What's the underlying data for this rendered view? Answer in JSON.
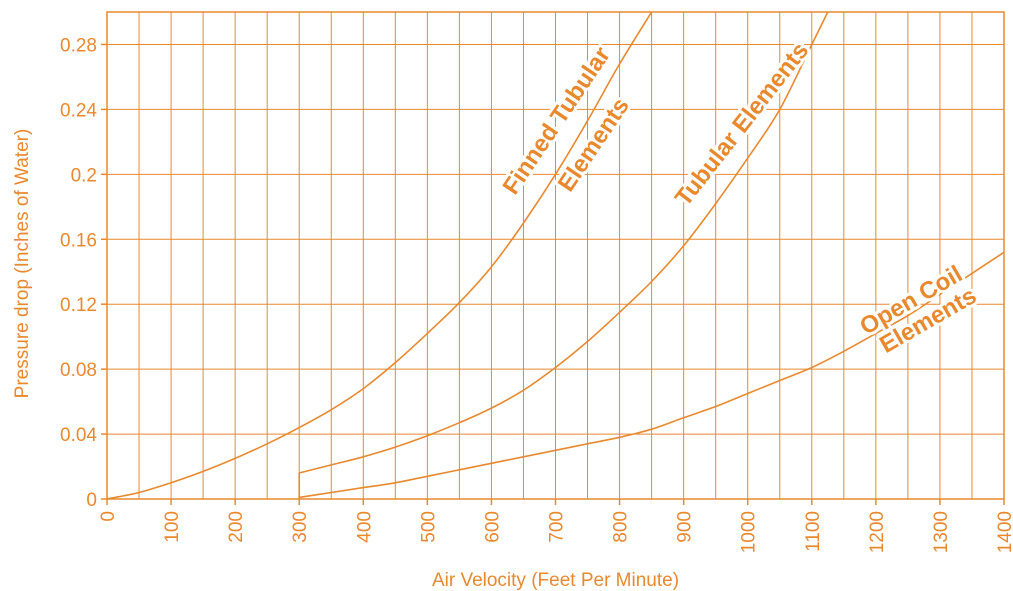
{
  "chart_data": {
    "type": "line",
    "xlabel": "Air Velocity (Feet Per Minute)",
    "ylabel": "Pressure drop (Inches of Water)",
    "xlim": [
      0,
      1400
    ],
    "ylim": [
      0,
      0.3
    ],
    "grid": true,
    "x_ticks": [
      "0",
      "100",
      "200",
      "300",
      "400",
      "500",
      "600",
      "700",
      "800",
      "900",
      "1000",
      "1100",
      "1200",
      "1300",
      "1400"
    ],
    "y_ticks": [
      "0",
      "0.04",
      "0.08",
      "0.12",
      "0.16",
      "0.2",
      "0.24",
      "0.28"
    ],
    "series": [
      {
        "label_lines": [
          "Finned Tubular",
          "Elements"
        ],
        "points": [
          [
            0,
            0
          ],
          [
            50,
            0.004
          ],
          [
            100,
            0.01
          ],
          [
            150,
            0.017
          ],
          [
            200,
            0.025
          ],
          [
            250,
            0.034
          ],
          [
            300,
            0.044
          ],
          [
            350,
            0.055
          ],
          [
            400,
            0.068
          ],
          [
            450,
            0.084
          ],
          [
            500,
            0.102
          ],
          [
            550,
            0.121
          ],
          [
            600,
            0.143
          ],
          [
            650,
            0.17
          ],
          [
            700,
            0.2
          ],
          [
            750,
            0.233
          ],
          [
            800,
            0.268
          ],
          [
            850,
            0.3
          ]
        ]
      },
      {
        "label_lines": [
          "Tubular Elements"
        ],
        "points": [
          [
            300,
            0.016
          ],
          [
            350,
            0.021
          ],
          [
            400,
            0.026
          ],
          [
            450,
            0.032
          ],
          [
            500,
            0.039
          ],
          [
            550,
            0.047
          ],
          [
            600,
            0.056
          ],
          [
            650,
            0.067
          ],
          [
            700,
            0.081
          ],
          [
            750,
            0.097
          ],
          [
            800,
            0.115
          ],
          [
            850,
            0.134
          ],
          [
            900,
            0.156
          ],
          [
            950,
            0.182
          ],
          [
            1000,
            0.21
          ],
          [
            1050,
            0.24
          ],
          [
            1100,
            0.28
          ],
          [
            1125,
            0.3
          ]
        ]
      },
      {
        "label_lines": [
          "Open Coil",
          "Elements"
        ],
        "points": [
          [
            300,
            0.001
          ],
          [
            350,
            0.004
          ],
          [
            400,
            0.007
          ],
          [
            450,
            0.01
          ],
          [
            500,
            0.014
          ],
          [
            550,
            0.018
          ],
          [
            600,
            0.022
          ],
          [
            650,
            0.026
          ],
          [
            700,
            0.03
          ],
          [
            750,
            0.034
          ],
          [
            800,
            0.038
          ],
          [
            850,
            0.043
          ],
          [
            900,
            0.05
          ],
          [
            950,
            0.057
          ],
          [
            1000,
            0.065
          ],
          [
            1050,
            0.073
          ],
          [
            1100,
            0.081
          ],
          [
            1150,
            0.091
          ],
          [
            1200,
            0.102
          ],
          [
            1250,
            0.113
          ],
          [
            1300,
            0.126
          ],
          [
            1350,
            0.139
          ],
          [
            1400,
            0.152
          ]
        ]
      }
    ]
  },
  "colors": {
    "accent": "#E8892E",
    "curve": "#E8892E"
  }
}
